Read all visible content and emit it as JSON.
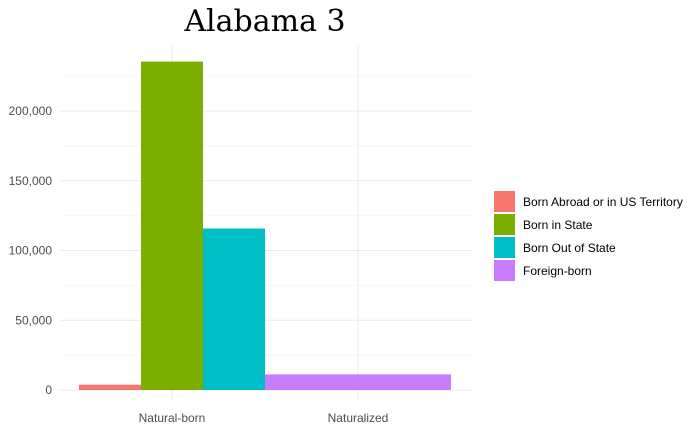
{
  "chart_data": {
    "type": "bar",
    "title": "Alabama 3",
    "xlabel": "",
    "ylabel": "",
    "categories": [
      "Natural-born",
      "Naturalized"
    ],
    "series": [
      {
        "name": "Born Abroad or in US Territory",
        "color": "#F8766D",
        "values": [
          3800,
          null
        ]
      },
      {
        "name": "Born in State",
        "color": "#7CAE00",
        "values": [
          235500,
          null
        ]
      },
      {
        "name": "Born Out of State",
        "color": "#00BFC4",
        "values": [
          115800,
          null
        ]
      },
      {
        "name": "Foreign-born",
        "color": "#C77CFF",
        "values": [
          null,
          11200
        ]
      }
    ],
    "yticks": [
      0,
      50000,
      100000,
      150000,
      200000
    ],
    "ytick_labels": [
      "0",
      "50,000",
      "100,000",
      "150,000",
      "200,000"
    ],
    "ylim": [
      0,
      247000
    ],
    "grid": true,
    "legend_position": "right"
  }
}
